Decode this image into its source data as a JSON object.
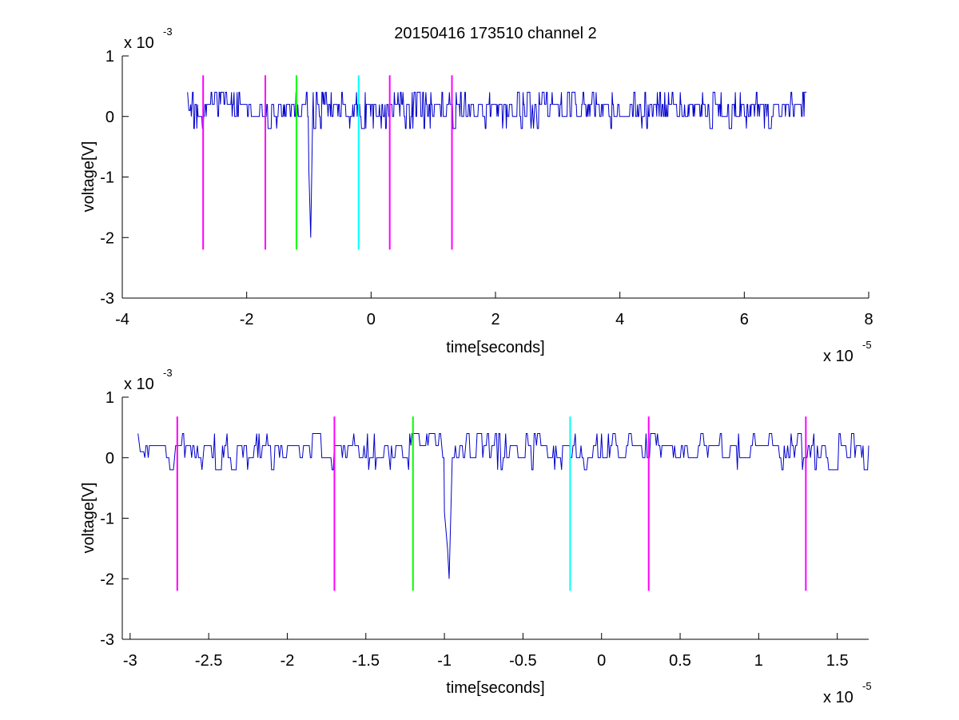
{
  "figure": {
    "title": "20150416 173510 channel 2"
  },
  "colors": {
    "signal": "#0000cc",
    "magenta": "#ff00ff",
    "green": "#00ff00",
    "cyan": "#00ffff",
    "axes": "#000000"
  },
  "chart_data": [
    {
      "type": "line",
      "title": "20150416 173510 channel 2",
      "xlabel": "time[seconds]",
      "ylabel": "voltage[V]",
      "x_multiplier": "x 10",
      "x_exponent": "-5",
      "y_multiplier": "x 10",
      "y_exponent": "-3",
      "xlim": [
        -4,
        8
      ],
      "ylim": [
        -3,
        1
      ],
      "xticks": [
        -4,
        -2,
        0,
        2,
        4,
        6,
        8
      ],
      "xtick_labels": [
        "-4",
        "-2",
        "0",
        "2",
        "4",
        "6",
        "8"
      ],
      "yticks": [
        -3,
        -2,
        -1,
        0,
        1
      ],
      "ytick_labels": [
        "-3",
        "-2",
        "-1",
        "0",
        "1"
      ],
      "grid": false,
      "signal": {
        "x_range": [
          -2.95,
          7.0
        ],
        "baseline": 0.1,
        "noise_levels": [
          0,
          0.2,
          0.4,
          -0.2
        ],
        "spike": [
          {
            "x": -1.0,
            "y": -0.9
          },
          {
            "x": -0.97,
            "y": -2.0
          },
          {
            "x": -0.94,
            "y": 0.0
          }
        ]
      },
      "markers": [
        {
          "x": -2.7,
          "color": "magenta",
          "y_range": [
            -2.2,
            0.68
          ]
        },
        {
          "x": -1.7,
          "color": "magenta",
          "y_range": [
            -2.2,
            0.68
          ]
        },
        {
          "x": -1.2,
          "color": "green",
          "y_range": [
            -2.2,
            0.68
          ]
        },
        {
          "x": -0.2,
          "color": "cyan",
          "y_range": [
            -2.2,
            0.68
          ]
        },
        {
          "x": 0.3,
          "color": "magenta",
          "y_range": [
            -2.2,
            0.68
          ]
        },
        {
          "x": 1.3,
          "color": "magenta",
          "y_range": [
            -2.2,
            0.68
          ]
        }
      ]
    },
    {
      "type": "line",
      "title": "",
      "xlabel": "time[seconds]",
      "ylabel": "voltage[V]",
      "x_multiplier": "x 10",
      "x_exponent": "-5",
      "y_multiplier": "x 10",
      "y_exponent": "-3",
      "xlim": [
        -3.05,
        1.7
      ],
      "ylim": [
        -3,
        1
      ],
      "xticks": [
        -3,
        -2.5,
        -2,
        -1.5,
        -1,
        -0.5,
        0,
        0.5,
        1,
        1.5
      ],
      "xtick_labels": [
        "-3",
        "-2.5",
        "-2",
        "-1.5",
        "-1",
        "-0.5",
        "0",
        "0.5",
        "1",
        "1.5"
      ],
      "yticks": [
        -3,
        -2,
        -1,
        0,
        1
      ],
      "ytick_labels": [
        "-3",
        "-2",
        "-1",
        "0",
        "1"
      ],
      "grid": false,
      "signal": {
        "x_range": [
          -2.95,
          1.7
        ],
        "baseline": 0.1,
        "noise_levels": [
          0,
          0.2,
          0.4,
          -0.2
        ],
        "spike": [
          {
            "x": -1.0,
            "y": -0.9
          },
          {
            "x": -0.98,
            "y": -1.5
          },
          {
            "x": -0.97,
            "y": -2.0
          },
          {
            "x": -0.95,
            "y": 0.0
          }
        ]
      },
      "markers": [
        {
          "x": -2.7,
          "color": "magenta",
          "y_range": [
            -2.2,
            0.68
          ]
        },
        {
          "x": -1.7,
          "color": "magenta",
          "y_range": [
            -2.2,
            0.68
          ]
        },
        {
          "x": -1.2,
          "color": "green",
          "y_range": [
            -2.2,
            0.68
          ]
        },
        {
          "x": -0.2,
          "color": "cyan",
          "y_range": [
            -2.2,
            0.68
          ]
        },
        {
          "x": 0.3,
          "color": "magenta",
          "y_range": [
            -2.2,
            0.68
          ]
        },
        {
          "x": 1.3,
          "color": "magenta",
          "y_range": [
            -2.2,
            0.68
          ]
        }
      ]
    }
  ]
}
